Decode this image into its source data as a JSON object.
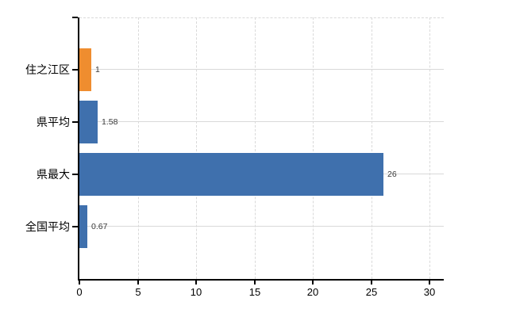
{
  "chart_data": {
    "type": "bar",
    "orientation": "horizontal",
    "title": "",
    "xlabel": "",
    "ylabel": "",
    "categories": [
      "住之江区",
      "県平均",
      "県最大",
      "全国平均"
    ],
    "values": [
      1,
      1.58,
      26,
      0.67
    ],
    "value_labels": [
      "1",
      "1.58",
      "26",
      "0.67"
    ],
    "bar_colors": [
      "#ef8d2f",
      "#3f70ad",
      "#3f70ad",
      "#3f70ad"
    ],
    "x_tick_labels": [
      "0",
      "5",
      "10",
      "15",
      "20",
      "25",
      "30"
    ],
    "x_tick_values": [
      0,
      5,
      10,
      15,
      20,
      25,
      30
    ],
    "xlim": [
      0,
      31.2
    ],
    "legend": "none",
    "grid": {
      "vertical": true,
      "vertical_style": "dashed",
      "horizontal": true,
      "horizontal_style": "solid",
      "color": "#d9d9d9"
    },
    "axis_color": "#000000",
    "value_label_color": "#3a3a3a"
  }
}
